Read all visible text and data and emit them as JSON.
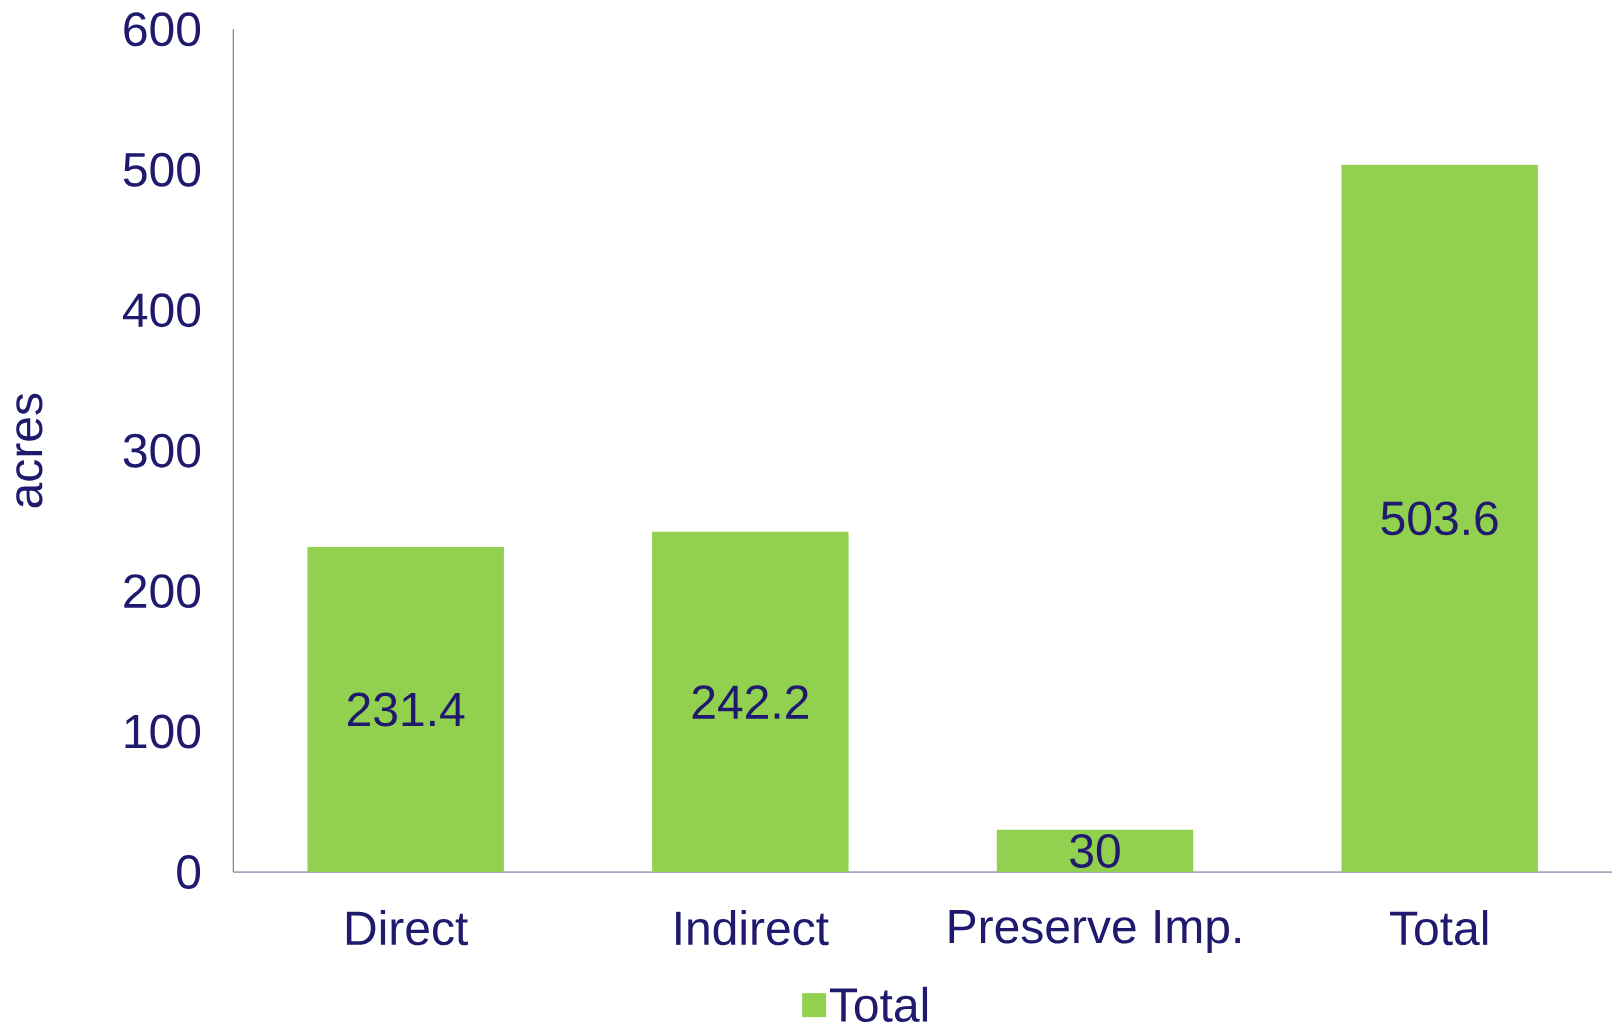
{
  "chart_data": {
    "type": "bar",
    "ylabel": "acres",
    "categories": [
      "Direct",
      "Indirect",
      "Preserve Imp.",
      "Total"
    ],
    "series": [
      {
        "name": "Total",
        "color": "#92d050",
        "values": [
          231.4,
          242.2,
          30,
          503.6
        ]
      }
    ],
    "ylim": [
      0,
      600
    ],
    "yticks": [
      0,
      100,
      200,
      300,
      400,
      500,
      600
    ],
    "data_labels": true,
    "legend": "bottom",
    "grid": false
  }
}
